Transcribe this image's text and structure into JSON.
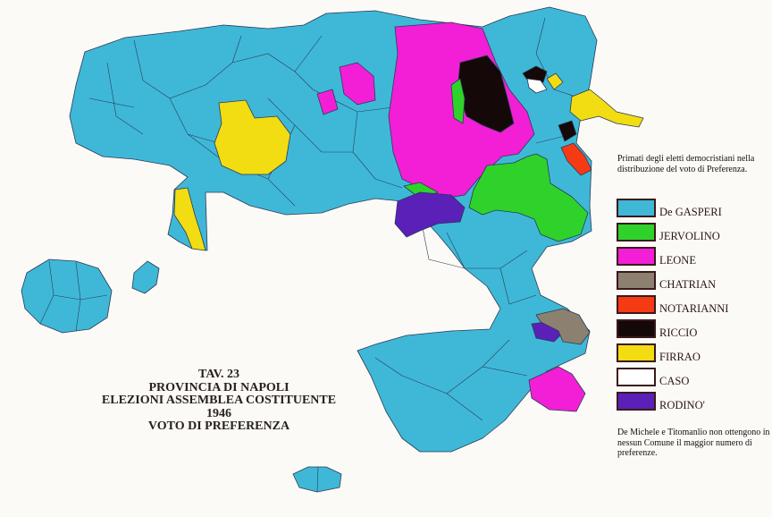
{
  "title": {
    "line1": "TAV. 23",
    "line2": "PROVINCIA DI NAPOLI",
    "line3": "ELEZIONI ASSEMBLEA COSTITUENTE 1946",
    "line4": "VOTO DI PREFERENZA"
  },
  "legend": {
    "intro": "Primati degli eletti democristiani nella distribuzione del voto di Preferenza.",
    "items": [
      {
        "label": "De GASPERI",
        "color": "#3fb8d8"
      },
      {
        "label": "JERVOLINO",
        "color": "#2fd22a"
      },
      {
        "label": "LEONE",
        "color": "#f21fd6"
      },
      {
        "label": "CHATRIAN",
        "color": "#8c8070"
      },
      {
        "label": "NOTARIANNI",
        "color": "#f53a14"
      },
      {
        "label": "RICCIO",
        "color": "#150808"
      },
      {
        "label": "FIRRAO",
        "color": "#f2dc12"
      },
      {
        "label": "CASO",
        "color": "#ffffff"
      },
      {
        "label": "RODINO'",
        "color": "#5a20b8"
      }
    ],
    "note": "De Michele e Titomanlio non ottengono in nessun Comune il maggior numero di preferenze."
  }
}
